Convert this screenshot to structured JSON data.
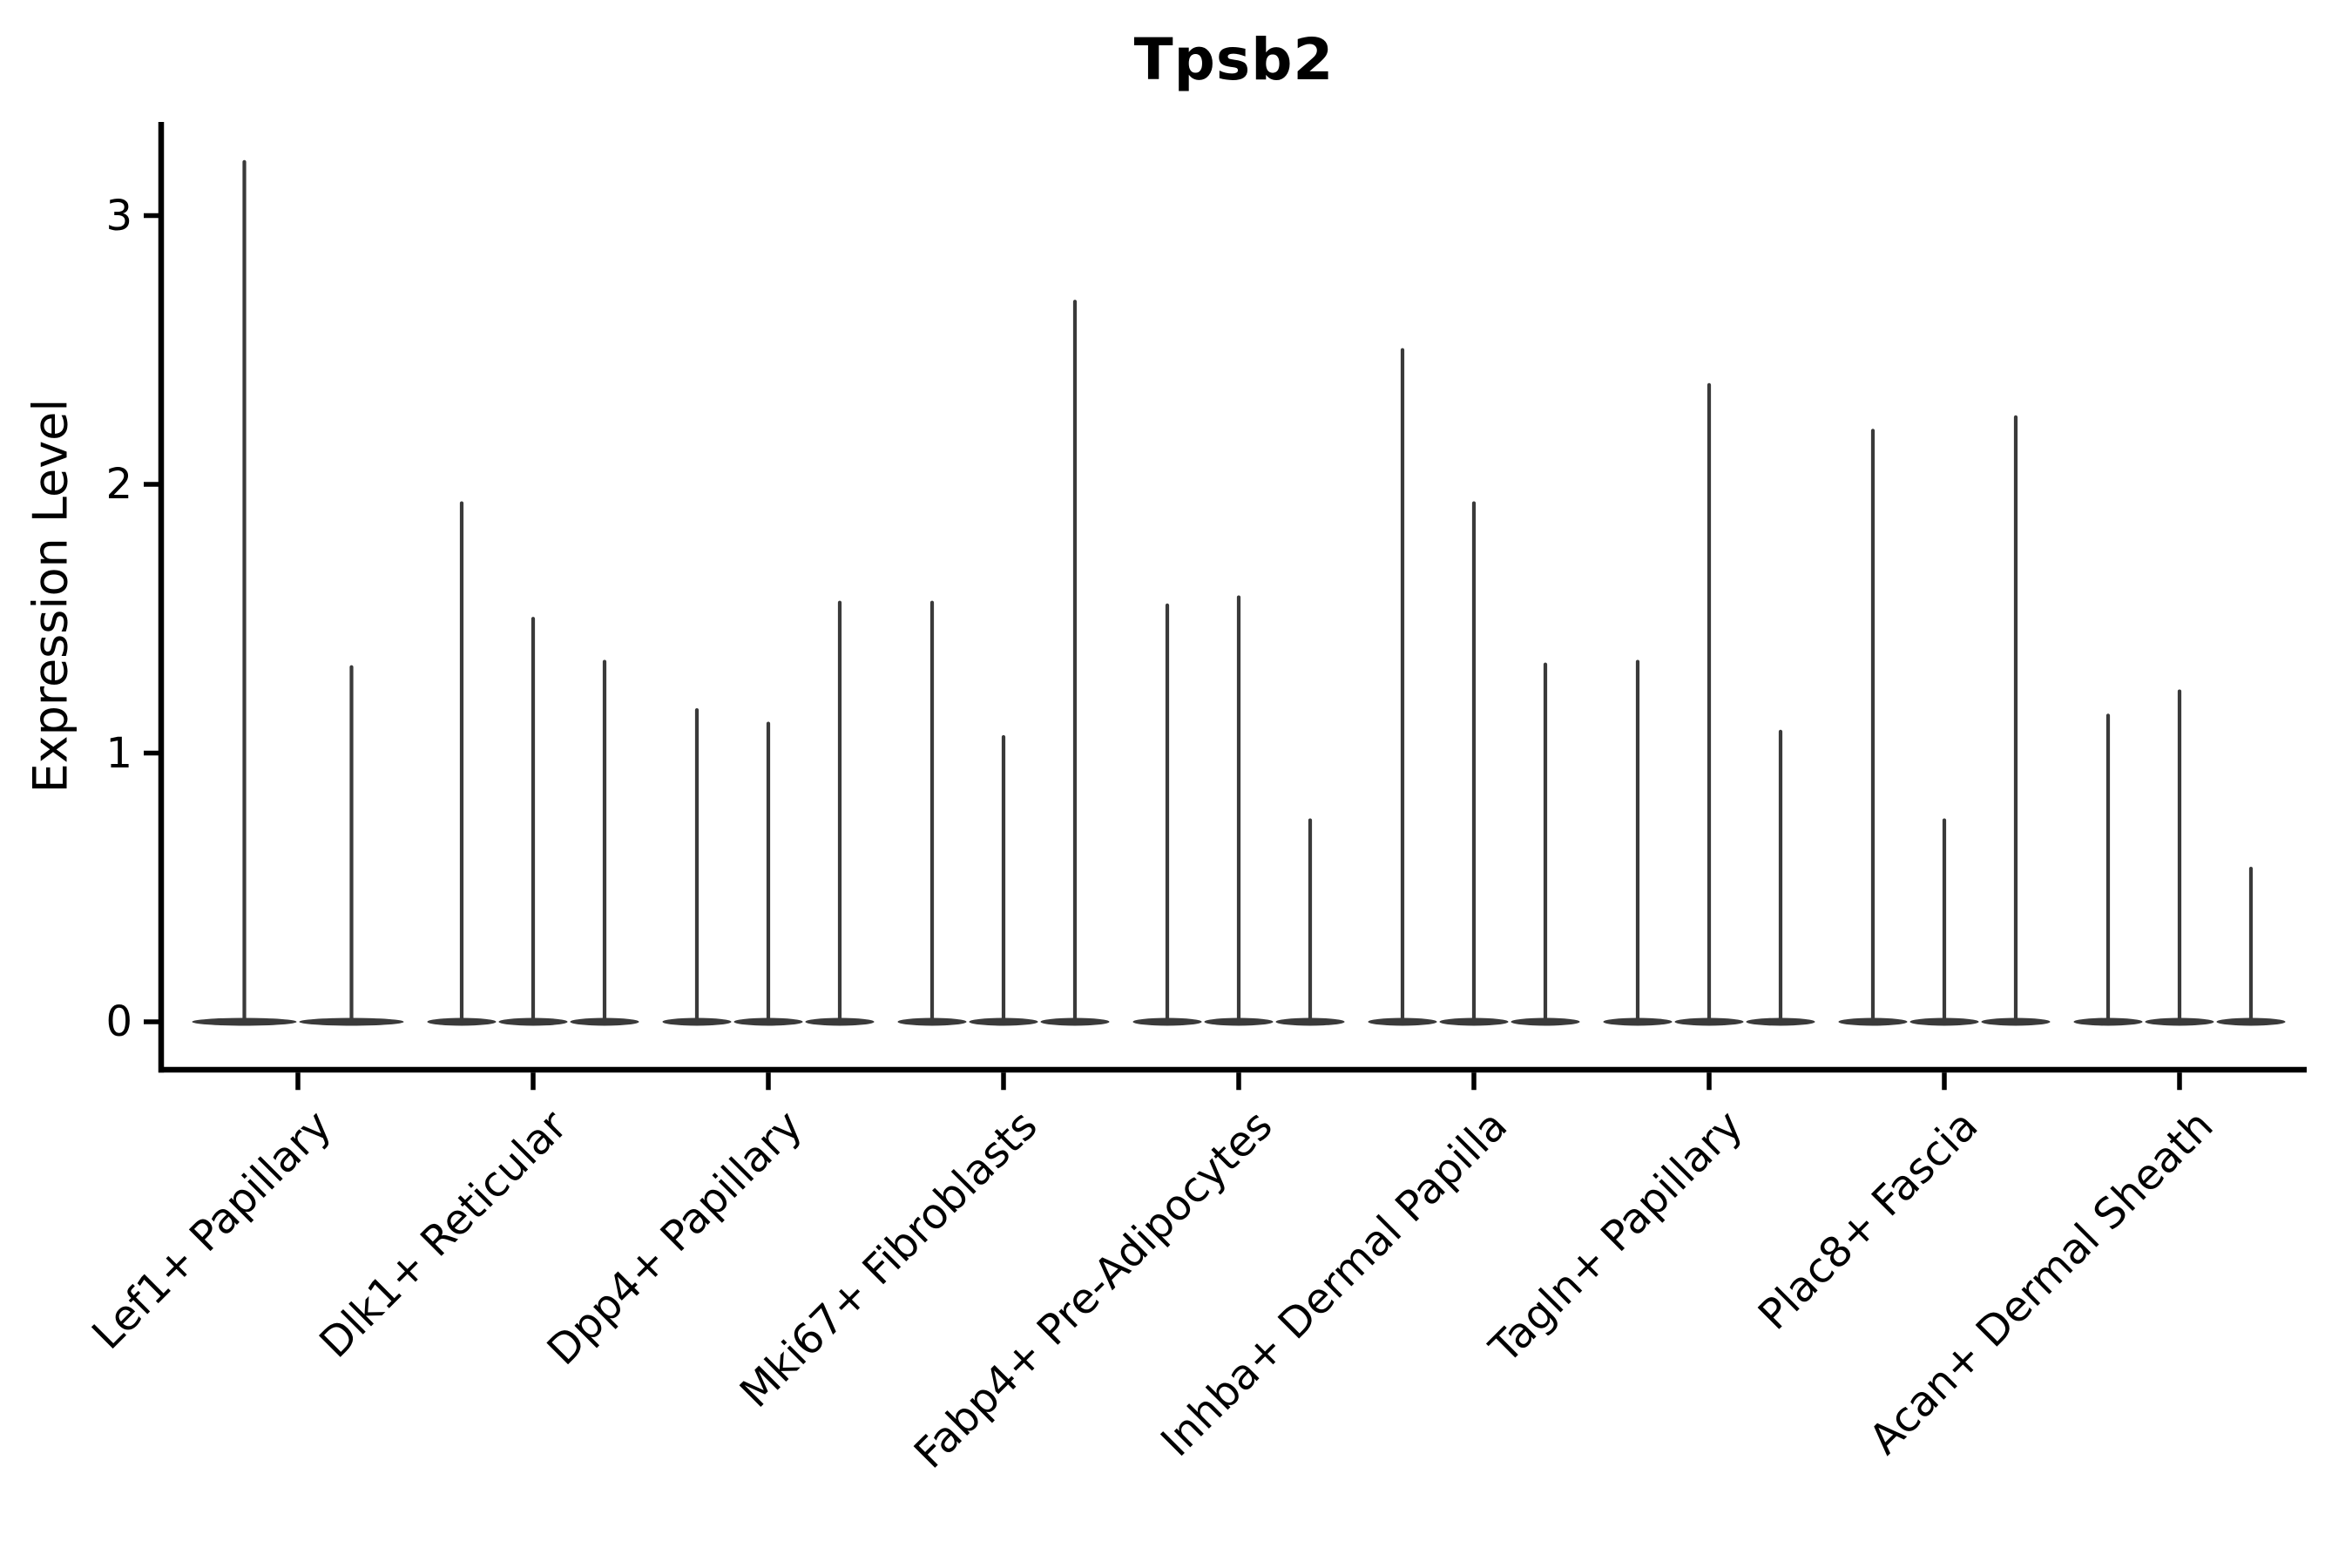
{
  "chart_data": {
    "type": "violin",
    "title": "Tpsb2",
    "ylabel": "Expression Level",
    "xlabel": "",
    "yticks": [
      0,
      1,
      2,
      3
    ],
    "ylim": [
      -0.18,
      3.35
    ],
    "grid": false,
    "legend": "none",
    "violin_color": "#3a3a3a",
    "axis_color": "#000000",
    "categories": [
      "Lef1+ Papillary",
      "Dlk1+ Reticular",
      "Dpp4+ Papillary",
      "Mki67+ Fibroblasts",
      "Fabp4+ Pre-Adipocytes",
      "Inhba+ Dermal Papilla",
      "Tagln+ Papillary",
      "Plac8+ Fascia",
      "Acan+ Dermal Sheath"
    ],
    "description": "Violin plot of Tpsb2 expression; each category holds 2-3 near-zero violins (flat base at 0) with a thin spike reaching the max expression value.",
    "spike_maxima_per_category": [
      [
        3.2,
        1.32
      ],
      [
        1.93,
        1.5,
        1.34
      ],
      [
        1.16,
        1.11,
        1.56
      ],
      [
        1.56,
        1.06,
        2.68
      ],
      [
        1.55,
        1.58,
        0.75
      ],
      [
        2.5,
        1.93,
        1.33
      ],
      [
        1.34,
        2.37,
        1.08
      ],
      [
        2.2,
        0.75,
        2.25
      ],
      [
        1.14,
        1.23,
        0.57
      ]
    ]
  }
}
